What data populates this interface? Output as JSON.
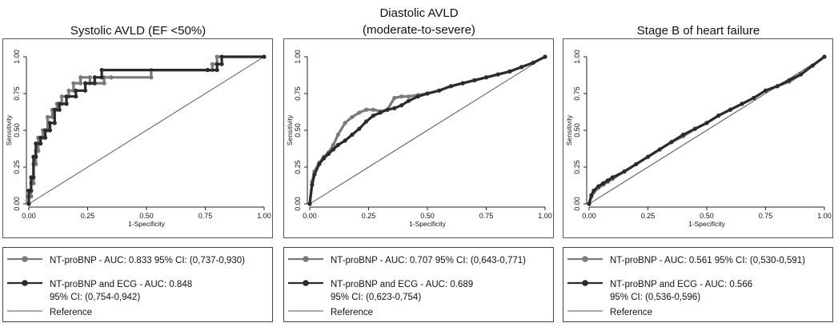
{
  "chart_data": [
    {
      "type": "line",
      "title": "Systolic AVLD (EF <50%)",
      "xlabel": "1-Specificity",
      "ylabel": "Sensitivity",
      "xlim": [
        0,
        1
      ],
      "ylim": [
        0,
        1
      ],
      "xticks": [
        "0.00",
        "0.25",
        "0.50",
        "0.75",
        "1.00"
      ],
      "yticks": [
        "0.00",
        "0.25",
        "0.50",
        "0.75",
        "1.00"
      ],
      "colors": {
        "ntprobnp": "#7a7a7a",
        "ecg": "#2b2b2b",
        "reference": "#555555"
      },
      "series": [
        {
          "name": "NT-proBNP - AUC: 0.833 95% CI: (0,737-0,930)",
          "key": "ntprobnp",
          "x": [
            0,
            0,
            0.01,
            0.01,
            0.02,
            0.02,
            0.03,
            0.03,
            0.04,
            0.04,
            0.06,
            0.06,
            0.08,
            0.08,
            0.1,
            0.1,
            0.12,
            0.12,
            0.14,
            0.14,
            0.17,
            0.17,
            0.19,
            0.19,
            0.22,
            0.22,
            0.26,
            0.26,
            0.32,
            0.32,
            0.35,
            0.35,
            0.52,
            0.52,
            0.78,
            0.78,
            0.8,
            0.8,
            1.0
          ],
          "y": [
            0,
            0.05,
            0.05,
            0.14,
            0.14,
            0.27,
            0.27,
            0.36,
            0.36,
            0.45,
            0.45,
            0.5,
            0.5,
            0.59,
            0.59,
            0.64,
            0.64,
            0.68,
            0.68,
            0.73,
            0.73,
            0.77,
            0.77,
            0.82,
            0.82,
            0.86,
            0.86,
            0.82,
            0.82,
            0.86,
            0.86,
            0.86,
            0.86,
            0.91,
            0.91,
            0.95,
            0.95,
            1.0,
            1.0
          ]
        },
        {
          "name": "NT-proBNP and ECG - AUC: 0.848\n95% CI: (0,754-0,942)",
          "key": "ecg",
          "x": [
            0,
            0,
            0.01,
            0.01,
            0.02,
            0.02,
            0.03,
            0.03,
            0.05,
            0.05,
            0.07,
            0.07,
            0.09,
            0.09,
            0.11,
            0.11,
            0.13,
            0.13,
            0.16,
            0.16,
            0.2,
            0.2,
            0.24,
            0.24,
            0.28,
            0.28,
            0.31,
            0.31,
            0.76,
            0.76,
            0.8,
            0.8,
            0.82,
            0.82,
            1.0
          ],
          "y": [
            0,
            0.09,
            0.09,
            0.18,
            0.18,
            0.32,
            0.32,
            0.41,
            0.41,
            0.45,
            0.45,
            0.5,
            0.5,
            0.55,
            0.55,
            0.64,
            0.64,
            0.68,
            0.68,
            0.73,
            0.73,
            0.77,
            0.77,
            0.82,
            0.82,
            0.86,
            0.86,
            0.91,
            0.91,
            0.91,
            0.91,
            0.95,
            0.95,
            1.0,
            1.0
          ]
        }
      ],
      "reference": {
        "x": [
          0,
          1
        ],
        "y": [
          0,
          1
        ]
      },
      "legend": [
        {
          "key": "ntprobnp",
          "text": "NT-proBNP - AUC: 0.833 95% CI: (0,737-0,930)"
        },
        {
          "key": "ecg",
          "text": "NT-proBNP and ECG - AUC: 0.848\n95% CI: (0,754-0,942)"
        },
        {
          "key": "reference",
          "text": "Reference"
        }
      ]
    },
    {
      "type": "line",
      "title": "Diastolic AVLD\n(moderate-to-severe)",
      "xlabel": "1-Specificity",
      "ylabel": "Sensitivity",
      "xlim": [
        0,
        1
      ],
      "ylim": [
        0,
        1
      ],
      "xticks": [
        "0.00",
        "0.25",
        "0.50",
        "0.75",
        "1.00"
      ],
      "yticks": [
        "0.00",
        "0.25",
        "0.50",
        "0.75",
        "1.00"
      ],
      "colors": {
        "ntprobnp": "#7a7a7a",
        "ecg": "#2b2b2b",
        "reference": "#555555"
      },
      "series": [
        {
          "name": "NT-proBNP - AUC: 0.707 95% CI: (0,643-0,771)",
          "key": "ntprobnp",
          "x": [
            0,
            0.01,
            0.02,
            0.04,
            0.06,
            0.08,
            0.1,
            0.12,
            0.15,
            0.18,
            0.21,
            0.24,
            0.27,
            0.3,
            0.33,
            0.36,
            0.39,
            0.42,
            0.46,
            0.5,
            0.55,
            0.6,
            0.65,
            0.7,
            0.75,
            0.8,
            0.85,
            0.9,
            0.95,
            1.0
          ],
          "y": [
            0,
            0.15,
            0.22,
            0.28,
            0.32,
            0.35,
            0.4,
            0.47,
            0.55,
            0.59,
            0.62,
            0.64,
            0.64,
            0.63,
            0.64,
            0.72,
            0.73,
            0.73,
            0.74,
            0.75,
            0.77,
            0.8,
            0.82,
            0.84,
            0.86,
            0.88,
            0.9,
            0.93,
            0.96,
            1.0
          ]
        },
        {
          "name": "NT-proBNP and ECG - AUC: 0.689\n95% CI: (0,623-0,754)",
          "key": "ecg",
          "x": [
            0,
            0.01,
            0.02,
            0.04,
            0.06,
            0.08,
            0.1,
            0.12,
            0.15,
            0.18,
            0.21,
            0.24,
            0.27,
            0.3,
            0.33,
            0.36,
            0.39,
            0.42,
            0.46,
            0.5,
            0.55,
            0.6,
            0.65,
            0.7,
            0.75,
            0.8,
            0.85,
            0.9,
            0.95,
            1.0
          ],
          "y": [
            0,
            0.13,
            0.2,
            0.27,
            0.31,
            0.34,
            0.37,
            0.4,
            0.43,
            0.47,
            0.51,
            0.56,
            0.6,
            0.62,
            0.64,
            0.65,
            0.67,
            0.7,
            0.73,
            0.75,
            0.77,
            0.8,
            0.82,
            0.84,
            0.86,
            0.88,
            0.9,
            0.93,
            0.96,
            1.0
          ]
        }
      ],
      "reference": {
        "x": [
          0,
          1
        ],
        "y": [
          0,
          1
        ]
      },
      "legend": [
        {
          "key": "ntprobnp",
          "text": "NT-proBNP - AUC: 0.707 95% CI: (0,643-0,771)"
        },
        {
          "key": "ecg",
          "text": "NT-proBNP and ECG - AUC: 0.689\n95% CI: (0,623-0,754)"
        },
        {
          "key": "reference",
          "text": "Reference"
        }
      ]
    },
    {
      "type": "line",
      "title": "Stage B of heart failure",
      "xlabel": "1-Specificity",
      "ylabel": "Sensitivity",
      "xlim": [
        0,
        1
      ],
      "ylim": [
        0,
        1
      ],
      "xticks": [
        "0.00",
        "0.25",
        "0.50",
        "0.75",
        "1.00"
      ],
      "yticks": [
        "0.00",
        "0.25",
        "0.50",
        "0.75",
        "1.00"
      ],
      "colors": {
        "ntprobnp": "#7a7a7a",
        "ecg": "#2b2b2b",
        "reference": "#555555"
      },
      "series": [
        {
          "name": "NT-proBNP - AUC: 0.561 95% CI: (0,530-0,591)",
          "key": "ntprobnp",
          "x": [
            0,
            0.01,
            0.02,
            0.04,
            0.06,
            0.08,
            0.1,
            0.15,
            0.2,
            0.25,
            0.3,
            0.35,
            0.4,
            0.45,
            0.5,
            0.55,
            0.6,
            0.65,
            0.7,
            0.75,
            0.8,
            0.85,
            0.9,
            0.95,
            1.0
          ],
          "y": [
            0,
            0.05,
            0.08,
            0.11,
            0.13,
            0.15,
            0.17,
            0.22,
            0.27,
            0.32,
            0.37,
            0.42,
            0.46,
            0.51,
            0.55,
            0.6,
            0.64,
            0.68,
            0.72,
            0.77,
            0.8,
            0.83,
            0.88,
            0.94,
            1.0
          ]
        },
        {
          "name": "NT-proBNP and ECG - AUC: 0.566\n95% CI: (0,536-0,596)",
          "key": "ecg",
          "x": [
            0,
            0.01,
            0.02,
            0.04,
            0.06,
            0.08,
            0.1,
            0.15,
            0.2,
            0.25,
            0.3,
            0.35,
            0.4,
            0.45,
            0.5,
            0.55,
            0.6,
            0.65,
            0.7,
            0.75,
            0.8,
            0.85,
            0.9,
            0.95,
            1.0
          ],
          "y": [
            0,
            0.06,
            0.09,
            0.12,
            0.14,
            0.16,
            0.18,
            0.22,
            0.27,
            0.32,
            0.37,
            0.42,
            0.47,
            0.51,
            0.55,
            0.6,
            0.64,
            0.68,
            0.72,
            0.77,
            0.8,
            0.84,
            0.88,
            0.94,
            1.0
          ]
        }
      ],
      "reference": {
        "x": [
          0,
          1
        ],
        "y": [
          0,
          1
        ]
      },
      "legend": [
        {
          "key": "ntprobnp",
          "text": "NT-proBNP - AUC: 0.561 95% CI: (0,530-0,591)"
        },
        {
          "key": "ecg",
          "text": "NT-proBNP and ECG - AUC: 0.566\n95% CI: (0,536-0,596)"
        },
        {
          "key": "reference",
          "text": "Reference"
        }
      ]
    }
  ]
}
